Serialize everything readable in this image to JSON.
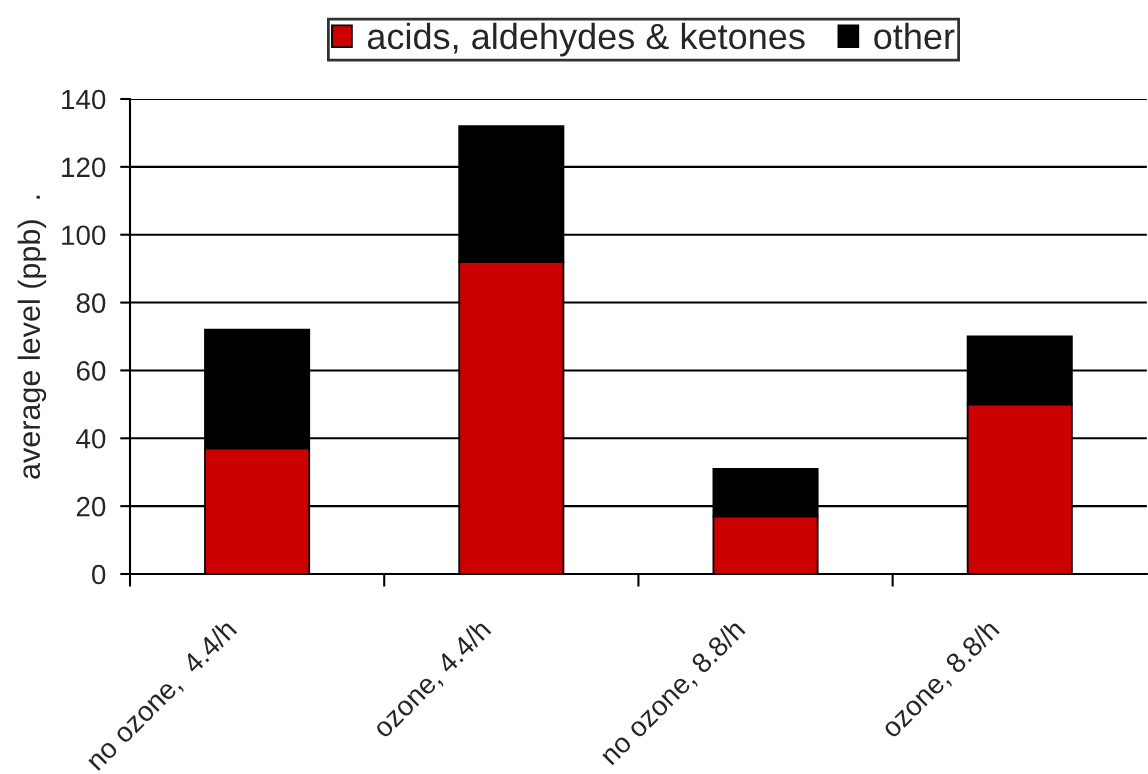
{
  "chart_data": {
    "type": "bar",
    "stacked": true,
    "ylabel": "average level (ppb)  .",
    "categories": [
      "no ozone,  4.4/h",
      "ozone, 4.4/h",
      "no ozone, 8.8/h",
      "ozone, 8.8/h"
    ],
    "series": [
      {
        "name": "acids, aldehydes & ketones",
        "color": "#cc0000",
        "values": [
          37,
          92,
          17,
          50
        ]
      },
      {
        "name": "other",
        "color": "#000000",
        "values": [
          35,
          40,
          14,
          20
        ]
      }
    ],
    "ylim": [
      0,
      140
    ],
    "yticks": [
      0,
      20,
      40,
      60,
      80,
      100,
      120,
      140
    ],
    "grid": "y",
    "legend": "top"
  }
}
